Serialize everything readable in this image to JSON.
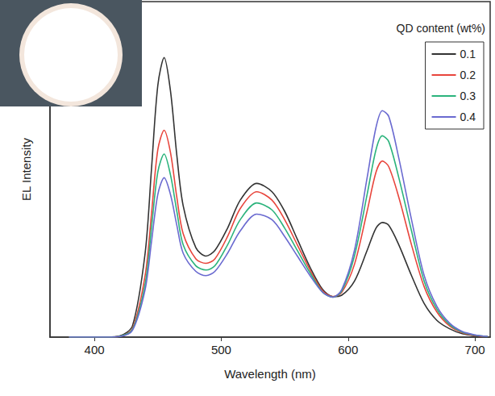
{
  "chart_data": {
    "type": "line",
    "x_label": "Wavelength (nm)",
    "y_label": "EL Intensity",
    "legend_title": "QD content (wt%)",
    "x": [
      380,
      410,
      420,
      430,
      440,
      445,
      450,
      455,
      460,
      465,
      470,
      480,
      488,
      495,
      505,
      515,
      528,
      540,
      550,
      560,
      570,
      580,
      588,
      595,
      605,
      615,
      622,
      627,
      632,
      640,
      650,
      660,
      670,
      680,
      690,
      700,
      710
    ],
    "series": [
      {
        "name": "0.1",
        "color": "#333333",
        "values": [
          0,
          0,
          0.004,
          0.04,
          0.3,
          0.6,
          0.9,
          1.0,
          0.88,
          0.65,
          0.47,
          0.32,
          0.29,
          0.31,
          0.39,
          0.49,
          0.55,
          0.52,
          0.45,
          0.35,
          0.25,
          0.17,
          0.145,
          0.15,
          0.2,
          0.31,
          0.39,
          0.41,
          0.4,
          0.33,
          0.22,
          0.12,
          0.06,
          0.03,
          0.012,
          0.005,
          0.002
        ]
      },
      {
        "name": "0.2",
        "color": "#e8453c",
        "values": [
          0,
          0,
          0.003,
          0.03,
          0.22,
          0.44,
          0.67,
          0.74,
          0.66,
          0.5,
          0.37,
          0.28,
          0.264,
          0.28,
          0.36,
          0.46,
          0.52,
          0.49,
          0.42,
          0.33,
          0.24,
          0.165,
          0.145,
          0.16,
          0.26,
          0.45,
          0.59,
          0.63,
          0.61,
          0.5,
          0.33,
          0.18,
          0.09,
          0.04,
          0.016,
          0.006,
          0.002
        ]
      },
      {
        "name": "0.3",
        "color": "#2bb37c",
        "values": [
          0,
          0,
          0.003,
          0.027,
          0.19,
          0.39,
          0.59,
          0.655,
          0.58,
          0.45,
          0.33,
          0.255,
          0.24,
          0.255,
          0.33,
          0.42,
          0.48,
          0.455,
          0.39,
          0.31,
          0.23,
          0.16,
          0.143,
          0.165,
          0.29,
          0.51,
          0.67,
          0.72,
          0.7,
          0.57,
          0.38,
          0.2,
          0.1,
          0.045,
          0.018,
          0.007,
          0.002
        ]
      },
      {
        "name": "0.4",
        "color": "#6a6ad0",
        "values": [
          0,
          0,
          0.002,
          0.024,
          0.17,
          0.34,
          0.51,
          0.57,
          0.51,
          0.4,
          0.3,
          0.235,
          0.22,
          0.235,
          0.3,
          0.38,
          0.44,
          0.42,
          0.36,
          0.29,
          0.22,
          0.16,
          0.143,
          0.17,
          0.31,
          0.57,
          0.75,
          0.81,
          0.79,
          0.64,
          0.42,
          0.22,
          0.11,
          0.05,
          0.02,
          0.008,
          0.002
        ]
      }
    ],
    "xlim": [
      365,
      712
    ],
    "xticks": [
      400,
      500,
      600,
      700
    ],
    "ylim": [
      0,
      1.2
    ],
    "tick_labels": "x",
    "grid": false,
    "legend": "upper right"
  }
}
